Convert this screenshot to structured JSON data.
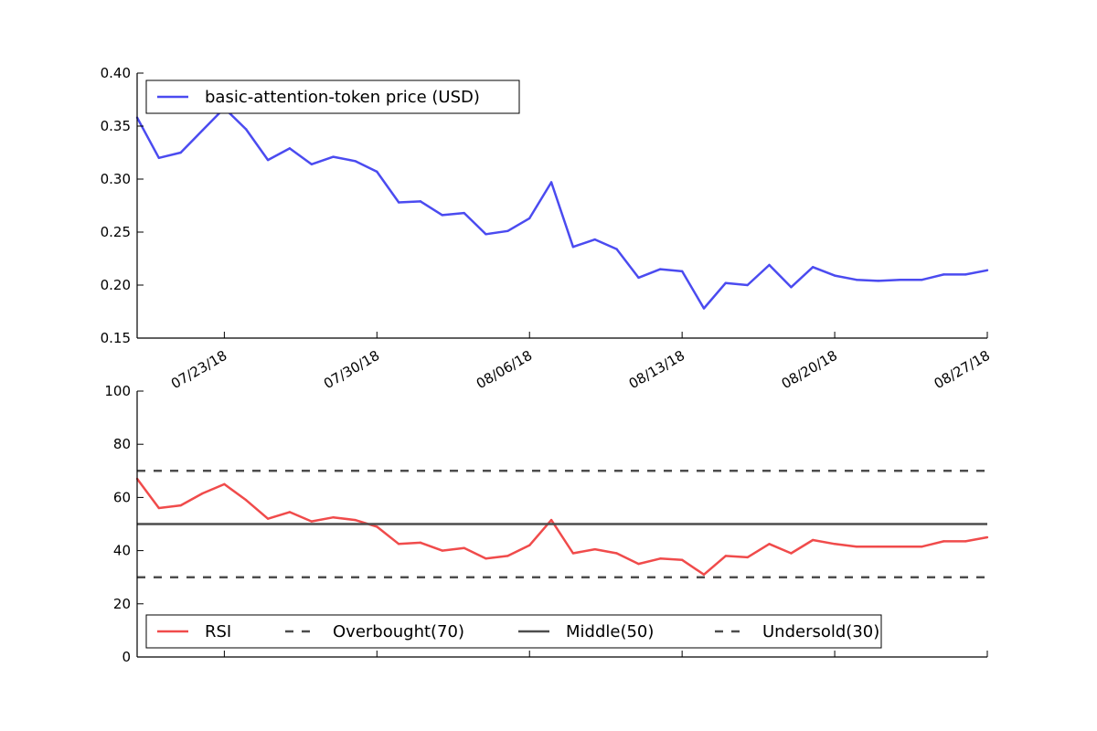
{
  "chart_data": [
    {
      "type": "line",
      "title": "",
      "xlabel": "",
      "ylabel": "",
      "x_range": [
        "2018-07-19",
        "2018-08-27"
      ],
      "ylim": [
        0.15,
        0.4
      ],
      "yticks": [
        "0.15",
        "0.20",
        "0.25",
        "0.30",
        "0.35",
        "0.40"
      ],
      "xticks": [
        {
          "date": "2018-07-23",
          "label": "07/23/18"
        },
        {
          "date": "2018-07-30",
          "label": "07/30/18"
        },
        {
          "date": "2018-08-06",
          "label": "08/06/18"
        },
        {
          "date": "2018-08-13",
          "label": "08/13/18"
        },
        {
          "date": "2018-08-20",
          "label": "08/20/18"
        },
        {
          "date": "2018-08-27",
          "label": "08/27/18"
        }
      ],
      "legend_position": "top-left",
      "grid": false,
      "series": [
        {
          "name": "basic-attention-token price (USD)",
          "color": "#4b4bf0",
          "x": [
            "2018-07-19",
            "2018-07-20",
            "2018-07-21",
            "2018-07-22",
            "2018-07-23",
            "2018-07-24",
            "2018-07-25",
            "2018-07-26",
            "2018-07-27",
            "2018-07-28",
            "2018-07-29",
            "2018-07-30",
            "2018-07-31",
            "2018-08-01",
            "2018-08-02",
            "2018-08-03",
            "2018-08-04",
            "2018-08-05",
            "2018-08-06",
            "2018-08-07",
            "2018-08-08",
            "2018-08-09",
            "2018-08-10",
            "2018-08-11",
            "2018-08-12",
            "2018-08-13",
            "2018-08-14",
            "2018-08-15",
            "2018-08-16",
            "2018-08-17",
            "2018-08-18",
            "2018-08-19",
            "2018-08-20",
            "2018-08-21",
            "2018-08-22",
            "2018-08-23",
            "2018-08-24",
            "2018-08-25",
            "2018-08-26",
            "2018-08-27"
          ],
          "values": [
            0.358,
            0.32,
            0.325,
            0.346,
            0.367,
            0.347,
            0.318,
            0.329,
            0.314,
            0.321,
            0.317,
            0.307,
            0.278,
            0.279,
            0.266,
            0.268,
            0.248,
            0.251,
            0.263,
            0.297,
            0.236,
            0.243,
            0.234,
            0.207,
            0.215,
            0.213,
            0.178,
            0.202,
            0.2,
            0.219,
            0.198,
            0.217,
            0.209,
            0.205,
            0.204,
            0.205,
            0.205,
            0.21,
            0.21,
            0.214
          ]
        }
      ]
    },
    {
      "type": "line",
      "title": "",
      "xlabel": "",
      "ylabel": "",
      "x_range": [
        "2018-07-19",
        "2018-08-27"
      ],
      "ylim": [
        0,
        100
      ],
      "yticks": [
        "0",
        "20",
        "40",
        "60",
        "80",
        "100"
      ],
      "legend_position": "bottom-left",
      "grid": false,
      "series": [
        {
          "name": "RSI",
          "color": "#f04b4b",
          "style": "solid",
          "x": [
            "2018-07-19",
            "2018-07-20",
            "2018-07-21",
            "2018-07-22",
            "2018-07-23",
            "2018-07-24",
            "2018-07-25",
            "2018-07-26",
            "2018-07-27",
            "2018-07-28",
            "2018-07-29",
            "2018-07-30",
            "2018-07-31",
            "2018-08-01",
            "2018-08-02",
            "2018-08-03",
            "2018-08-04",
            "2018-08-05",
            "2018-08-06",
            "2018-08-07",
            "2018-08-08",
            "2018-08-09",
            "2018-08-10",
            "2018-08-11",
            "2018-08-12",
            "2018-08-13",
            "2018-08-14",
            "2018-08-15",
            "2018-08-16",
            "2018-08-17",
            "2018-08-18",
            "2018-08-19",
            "2018-08-20",
            "2018-08-21",
            "2018-08-22",
            "2018-08-23",
            "2018-08-24",
            "2018-08-25",
            "2018-08-26",
            "2018-08-27"
          ],
          "values": [
            67,
            56,
            57,
            61.5,
            65,
            59,
            52,
            54.5,
            51,
            52.5,
            51.5,
            49,
            42.5,
            43,
            40,
            41,
            37,
            38,
            42,
            51.5,
            39,
            40.5,
            39,
            35,
            37,
            36.5,
            31,
            38,
            37.5,
            42.5,
            39,
            44,
            42.5,
            41.5,
            41.5,
            41.5,
            41.5,
            43.5,
            43.5,
            45
          ]
        },
        {
          "name": "Overbought(70)",
          "color": "#4d4d4d",
          "style": "dashed",
          "constant": 70
        },
        {
          "name": "Middle(50)",
          "color": "#4d4d4d",
          "style": "solid",
          "constant": 50
        },
        {
          "name": "Undersold(30)",
          "color": "#4d4d4d",
          "style": "dashed",
          "constant": 30
        }
      ]
    }
  ]
}
